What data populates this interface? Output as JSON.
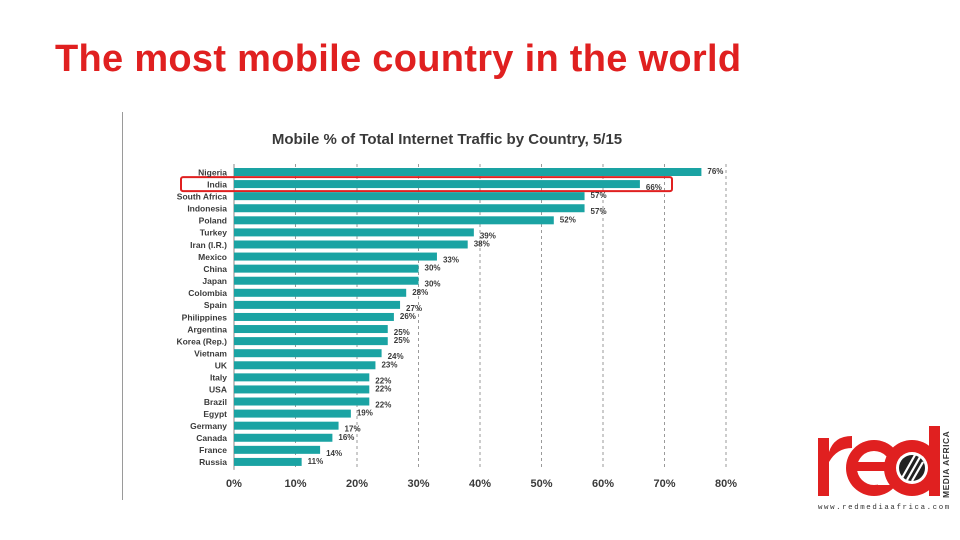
{
  "slide": {
    "title": "The most mobile country in the world"
  },
  "chart_data": {
    "type": "bar",
    "orientation": "horizontal",
    "title": "Mobile % of Total Internet Traffic by Country, 5/15",
    "categories": [
      "Nigeria",
      "India",
      "South Africa",
      "Indonesia",
      "Poland",
      "Turkey",
      "Iran (I.R.)",
      "Mexico",
      "China",
      "Japan",
      "Colombia",
      "Spain",
      "Philippines",
      "Argentina",
      "Korea (Rep.)",
      "Vietnam",
      "UK",
      "Italy",
      "USA",
      "Brazil",
      "Egypt",
      "Germany",
      "Canada",
      "France",
      "Russia"
    ],
    "values": [
      76,
      66,
      57,
      57,
      52,
      39,
      38,
      33,
      30,
      30,
      28,
      27,
      26,
      25,
      25,
      24,
      23,
      22,
      22,
      22,
      19,
      17,
      16,
      14,
      11
    ],
    "value_labels": [
      "76%",
      "66%",
      "57%",
      "57%",
      "52%",
      "39%",
      "38%",
      "33%",
      "30%",
      "30%",
      "28%",
      "27%",
      "26%",
      "25%",
      "25%",
      "24%",
      "23%",
      "22%",
      "22%",
      "22%",
      "19%",
      "17%",
      "16%",
      "14%",
      "11%"
    ],
    "xlim": [
      0,
      80
    ],
    "xticks": [
      "0%",
      "10%",
      "20%",
      "30%",
      "40%",
      "50%",
      "60%",
      "70%",
      "80%"
    ],
    "highlighted_category": "India",
    "bar_color": "#1aa3a3",
    "highlight_color": "#e02020",
    "grid": "dashed vertical"
  },
  "logo": {
    "brand": "red",
    "sub": "MEDIA AFRICA",
    "url": "www.redmediaafrica.com",
    "color": "#e02020"
  }
}
